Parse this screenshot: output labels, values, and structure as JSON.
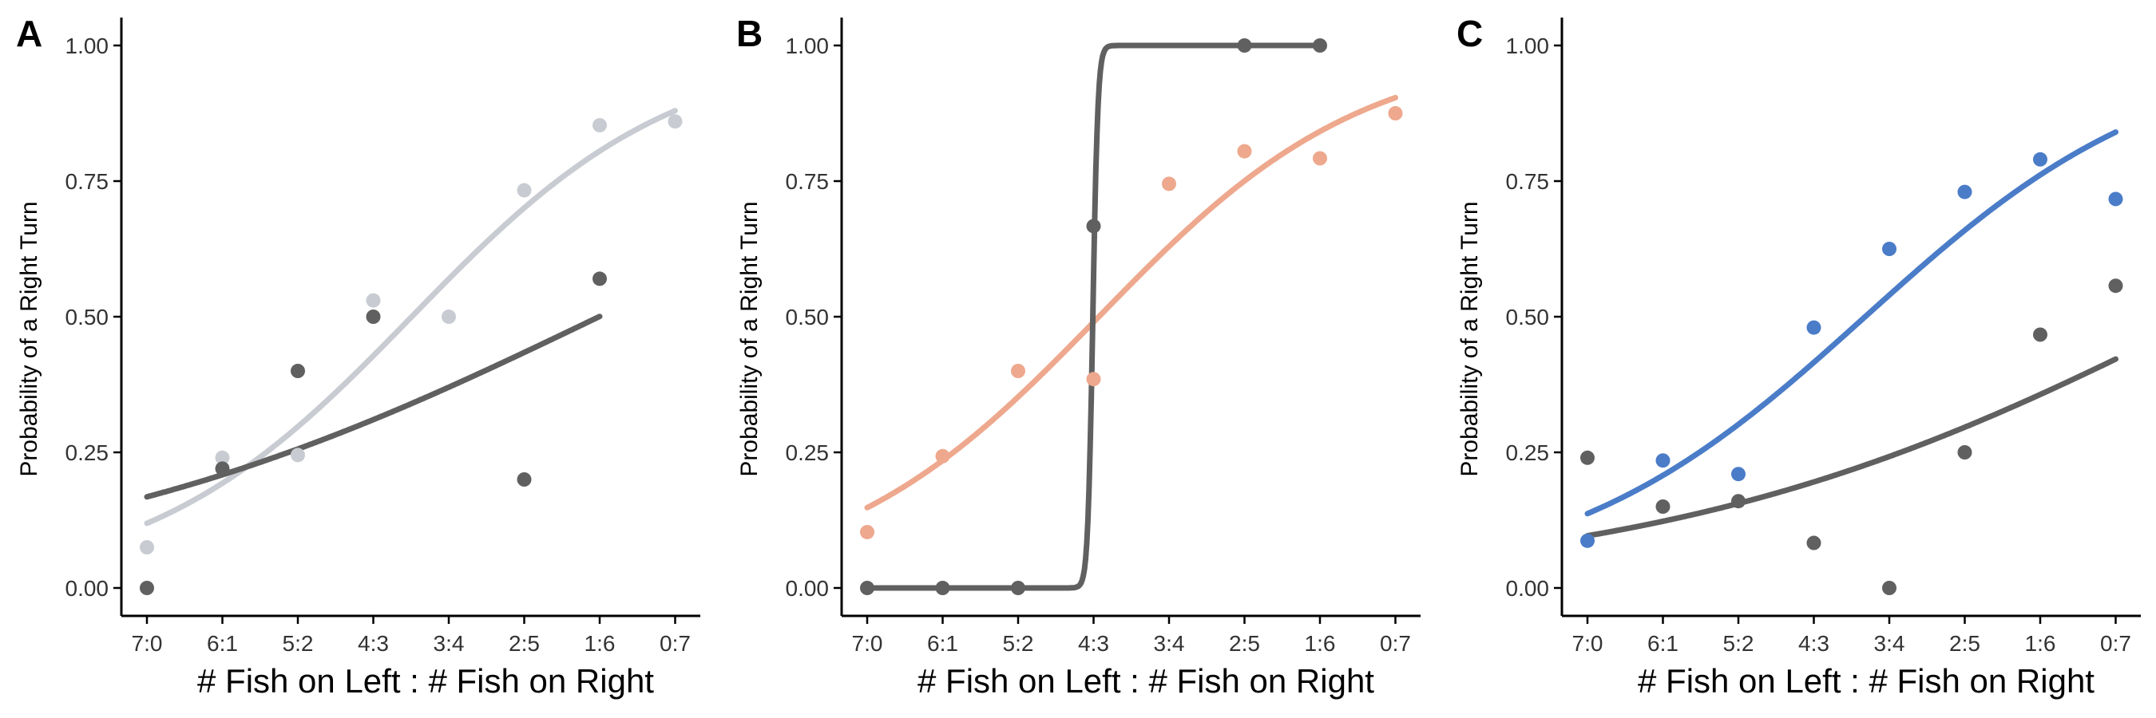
{
  "chart_data": [
    {
      "type": "scatter",
      "panel_label": "A",
      "title": "",
      "xlabel": "# Fish on Left : # Fish on Right",
      "ylabel": "Probability of a Right Turn",
      "categories": [
        "7:0",
        "6:1",
        "5:2",
        "4:3",
        "3:4",
        "2:5",
        "1:6",
        "0:7"
      ],
      "yticks": [
        "0.00",
        "0.25",
        "0.50",
        "0.75",
        "1.00"
      ],
      "ylim": [
        0,
        1
      ],
      "series": [
        {
          "name": "gray",
          "color": "#c8ccd2",
          "points": [
            [
              0,
              0.075
            ],
            [
              1,
              0.24
            ],
            [
              2,
              0.245
            ],
            [
              3,
              0.53
            ],
            [
              4,
              0.5
            ],
            [
              5,
              0.733
            ],
            [
              6,
              0.853
            ],
            [
              7,
              0.86
            ]
          ],
          "fit": {
            "b0": -2.0,
            "b1": 0.57,
            "x_range": [
              0,
              7
            ]
          }
        },
        {
          "name": "dark",
          "color": "#606060",
          "points": [
            [
              0,
              0.0
            ],
            [
              1,
              0.22
            ],
            [
              2,
              0.4
            ],
            [
              3,
              0.5
            ],
            [
              5,
              0.2
            ],
            [
              6,
              0.57
            ]
          ],
          "fit": {
            "b0": -1.6,
            "b1": 0.267,
            "x_range": [
              0,
              6
            ]
          }
        }
      ]
    },
    {
      "type": "scatter",
      "panel_label": "B",
      "title": "",
      "xlabel": "# Fish on Left : # Fish on Right",
      "ylabel": "Probability of a Right Turn",
      "categories": [
        "7:0",
        "6:1",
        "5:2",
        "4:3",
        "3:4",
        "2:5",
        "1:6",
        "0:7"
      ],
      "yticks": [
        "0.00",
        "0.25",
        "0.50",
        "0.75",
        "1.00"
      ],
      "ylim": [
        0,
        1
      ],
      "series": [
        {
          "name": "salmon",
          "color": "#eea88d",
          "points": [
            [
              0,
              0.103
            ],
            [
              1,
              0.243
            ],
            [
              2,
              0.4
            ],
            [
              3,
              0.385
            ],
            [
              4,
              0.745
            ],
            [
              5,
              0.805
            ],
            [
              6,
              0.792
            ],
            [
              7,
              0.875
            ]
          ],
          "fit": {
            "b0": -1.75,
            "b1": 0.57,
            "x_range": [
              0,
              7
            ]
          }
        },
        {
          "name": "dark",
          "color": "#606060",
          "points": [
            [
              0,
              0.0
            ],
            [
              1,
              0.0
            ],
            [
              2,
              0.0
            ],
            [
              3,
              0.667
            ],
            [
              5,
              1.0
            ],
            [
              6,
              1.0
            ]
          ],
          "fit": {
            "b0": -89.7,
            "b1": 30.0,
            "x_range": [
              0,
              6
            ]
          }
        }
      ]
    },
    {
      "type": "scatter",
      "panel_label": "C",
      "title": "",
      "xlabel": "# Fish on Left : # Fish on Right",
      "ylabel": "Probability of a Right Turn",
      "categories": [
        "7:0",
        "6:1",
        "5:2",
        "4:3",
        "3:4",
        "2:5",
        "1:6",
        "0:7"
      ],
      "yticks": [
        "0.00",
        "0.25",
        "0.50",
        "0.75",
        "1.00"
      ],
      "ylim": [
        0,
        1
      ],
      "series": [
        {
          "name": "blue",
          "color": "#4a7cc8",
          "points": [
            [
              0,
              0.087
            ],
            [
              1,
              0.235
            ],
            [
              2,
              0.21
            ],
            [
              3,
              0.48
            ],
            [
              4,
              0.625
            ],
            [
              5,
              0.73
            ],
            [
              6,
              0.79
            ],
            [
              7,
              0.717
            ]
          ],
          "fit": {
            "b0": -1.84,
            "b1": 0.5,
            "x_range": [
              0,
              7
            ]
          }
        },
        {
          "name": "dark",
          "color": "#606060",
          "points": [
            [
              0,
              0.24
            ],
            [
              1,
              0.15
            ],
            [
              2,
              0.16
            ],
            [
              3,
              0.083
            ],
            [
              4,
              0.0
            ],
            [
              5,
              0.25
            ],
            [
              6,
              0.467
            ],
            [
              7,
              0.557
            ]
          ],
          "fit": {
            "b0": -2.24,
            "b1": 0.275,
            "x_range": [
              0,
              7
            ]
          }
        }
      ]
    }
  ]
}
